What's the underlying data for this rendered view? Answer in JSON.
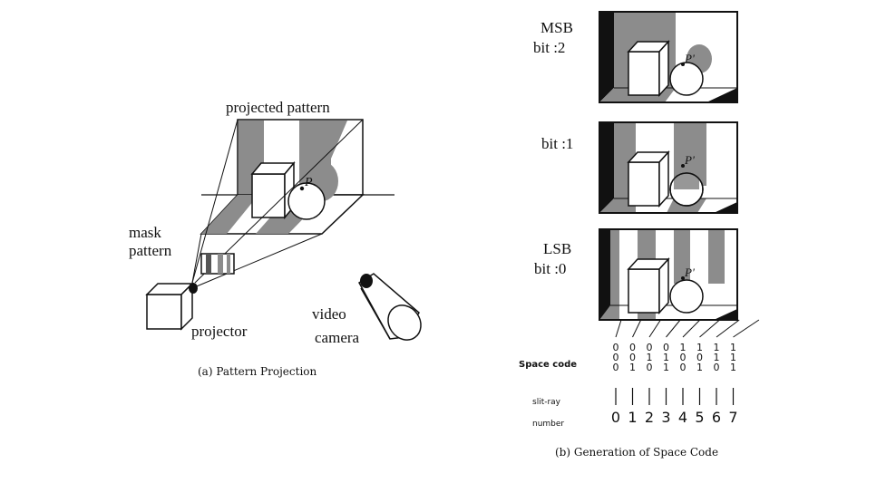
{
  "left_figure": {
    "labels": {
      "projected_pattern": "projected pattern",
      "mask": "mask",
      "pattern": "pattern",
      "projector": "projector",
      "video": "video",
      "camera": "camera",
      "point": "P"
    },
    "caption": "(a) Pattern Projection"
  },
  "right_figure": {
    "panels": [
      {
        "label_line1": "MSB",
        "label_line2": "bit :2",
        "point": "P'"
      },
      {
        "label_line1": "",
        "label_line2": "bit :1",
        "point": "P'"
      },
      {
        "label_line1": "LSB",
        "label_line2": "bit :0",
        "point": "P'"
      }
    ],
    "space_code_label": "Space code",
    "slit_ray_label_line1": "slit-ray",
    "slit_ray_label_line2": "number",
    "space_codes": [
      [
        "0",
        "0",
        "0"
      ],
      [
        "0",
        "0",
        "1"
      ],
      [
        "0",
        "1",
        "0"
      ],
      [
        "0",
        "1",
        "1"
      ],
      [
        "1",
        "0",
        "0"
      ],
      [
        "1",
        "0",
        "1"
      ],
      [
        "1",
        "1",
        "0"
      ],
      [
        "1",
        "1",
        "1"
      ]
    ],
    "slit_numbers": [
      "0",
      "1",
      "2",
      "3",
      "4",
      "5",
      "6",
      "7"
    ],
    "caption": "(b) Generation of Space Code"
  },
  "colors": {
    "stripe": "#8c8c8c",
    "ink": "#111111",
    "paper": "#ffffff"
  }
}
